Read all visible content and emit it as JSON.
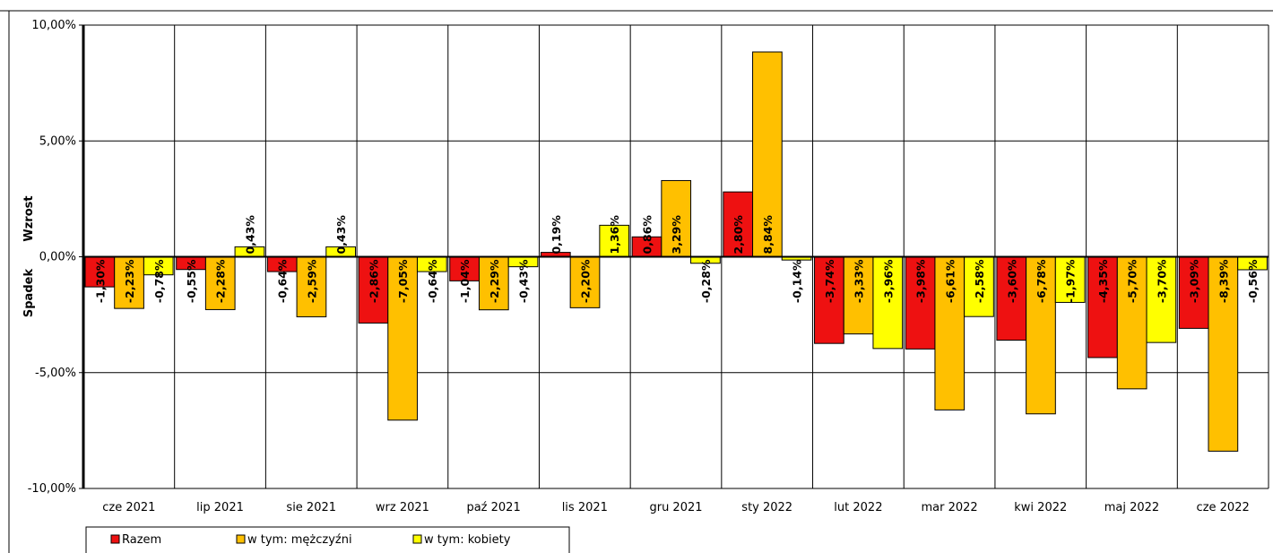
{
  "chart_data": {
    "type": "bar",
    "categories": [
      "cze 2021",
      "lip 2021",
      "sie 2021",
      "wrz 2021",
      "paź 2021",
      "lis 2021",
      "gru 2021",
      "sty 2022",
      "lut 2022",
      "mar 2022",
      "kwi 2022",
      "maj 2022",
      "cze 2022"
    ],
    "series": [
      {
        "name": "Razem",
        "color": "#ee1111",
        "values": [
          -1.3,
          -0.55,
          -0.64,
          -2.86,
          -1.04,
          0.19,
          0.86,
          2.8,
          -3.74,
          -3.98,
          -3.6,
          -4.35,
          -3.09
        ],
        "labels": [
          "-1,30%",
          "-0,55%",
          "-0,64%",
          "-2,86%",
          "-1,04%",
          "0,19%",
          "0,86%",
          "2,80%",
          "-3,74%",
          "-3,98%",
          "-3,60%",
          "-4,35%",
          "-3,09%"
        ]
      },
      {
        "name": "w tym: mężczyźni",
        "color": "#ffc000",
        "values": [
          -2.23,
          -2.28,
          -2.59,
          -7.05,
          -2.29,
          -2.2,
          3.29,
          8.84,
          -3.33,
          -6.61,
          -6.78,
          -5.7,
          -8.39
        ],
        "labels": [
          "-2,23%",
          "-2,28%",
          "-2,59%",
          "-7,05%",
          "-2,29%",
          "-2,20%",
          "3,29%",
          "8,84%",
          "-3,33%",
          "-6,61%",
          "-6,78%",
          "-5,70%",
          "-8,39%"
        ]
      },
      {
        "name": "w tym: kobiety",
        "color": "#ffff00",
        "values": [
          -0.78,
          0.43,
          0.43,
          -0.64,
          -0.43,
          1.36,
          -0.28,
          -0.14,
          -3.96,
          -2.58,
          -1.97,
          -3.7,
          -0.56
        ],
        "labels": [
          "-0,78%",
          "0,43%",
          "0,43%",
          "-0,64%",
          "-0,43%",
          "1,36%",
          "-0,28%",
          "-0,14%",
          "-3,96%",
          "-2,58%",
          "-1,97%",
          "-3,70%",
          "-0,56%"
        ]
      }
    ],
    "ylim": [
      -10,
      10
    ],
    "yticks": [
      10,
      5,
      0,
      -5,
      -10
    ],
    "ytick_labels": [
      "10,00%",
      "5,00%",
      "0,00%",
      "-5,00%",
      "-10,00%"
    ],
    "ylabel_positive": "Wzrost",
    "ylabel_negative": "Spadek",
    "grid": true,
    "legend_position": "bottom-left"
  }
}
